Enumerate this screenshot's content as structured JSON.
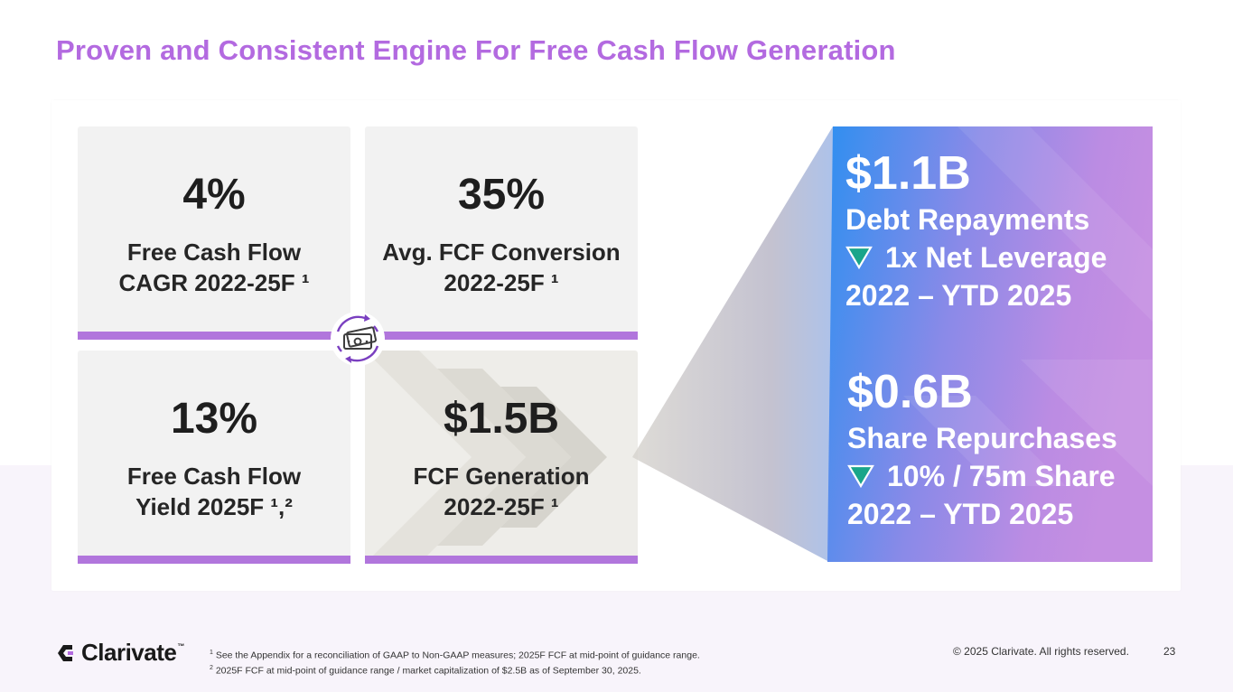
{
  "title": "Proven and Consistent Engine For Free Cash Flow Generation",
  "colors": {
    "accent": "#b36ae0",
    "bar": "#b176dc",
    "card_bg": "#f2f2f2",
    "gradient_start": "#2f8ff0",
    "gradient_end": "#c58fe2",
    "down_arrow": "#1aa58a"
  },
  "metrics": [
    {
      "value": "4%",
      "label_line1": "Free Cash Flow",
      "label_line2": "CAGR 2022-25F ¹"
    },
    {
      "value": "35%",
      "label_line1": "Avg. FCF Conversion",
      "label_line2": "2022-25F ¹"
    },
    {
      "value": "13%",
      "label_line1": "Free Cash Flow",
      "label_line2": "Yield 2025F ¹,²"
    },
    {
      "value": "$1.5B",
      "label_line1": "FCF Generation",
      "label_line2": "2022-25F ¹"
    }
  ],
  "center_icon": "money-cycle-icon",
  "uses": [
    {
      "amount": "$1.1B",
      "label": "Debt Repayments",
      "detail": "1x Net Leverage",
      "period": "2022 – YTD 2025",
      "icon": "down-triangle-icon"
    },
    {
      "amount": "$0.6B",
      "label": "Share Repurchases",
      "detail": "10% / 75m Share",
      "period": "2022 – YTD 2025",
      "icon": "down-triangle-icon"
    }
  ],
  "footer": {
    "brand": "Clarivate",
    "trademark": "™",
    "note1_marker": "1",
    "note1": "See the Appendix for a reconciliation of GAAP to Non-GAAP measures; 2025F FCF at mid-point of guidance range.",
    "note2_marker": "2",
    "note2": "2025F FCF at mid-point of guidance range / market capitalization of $2.5B as of September 30, 2025.",
    "copyright": "© 2025 Clarivate. All rights reserved.",
    "page": "23"
  }
}
